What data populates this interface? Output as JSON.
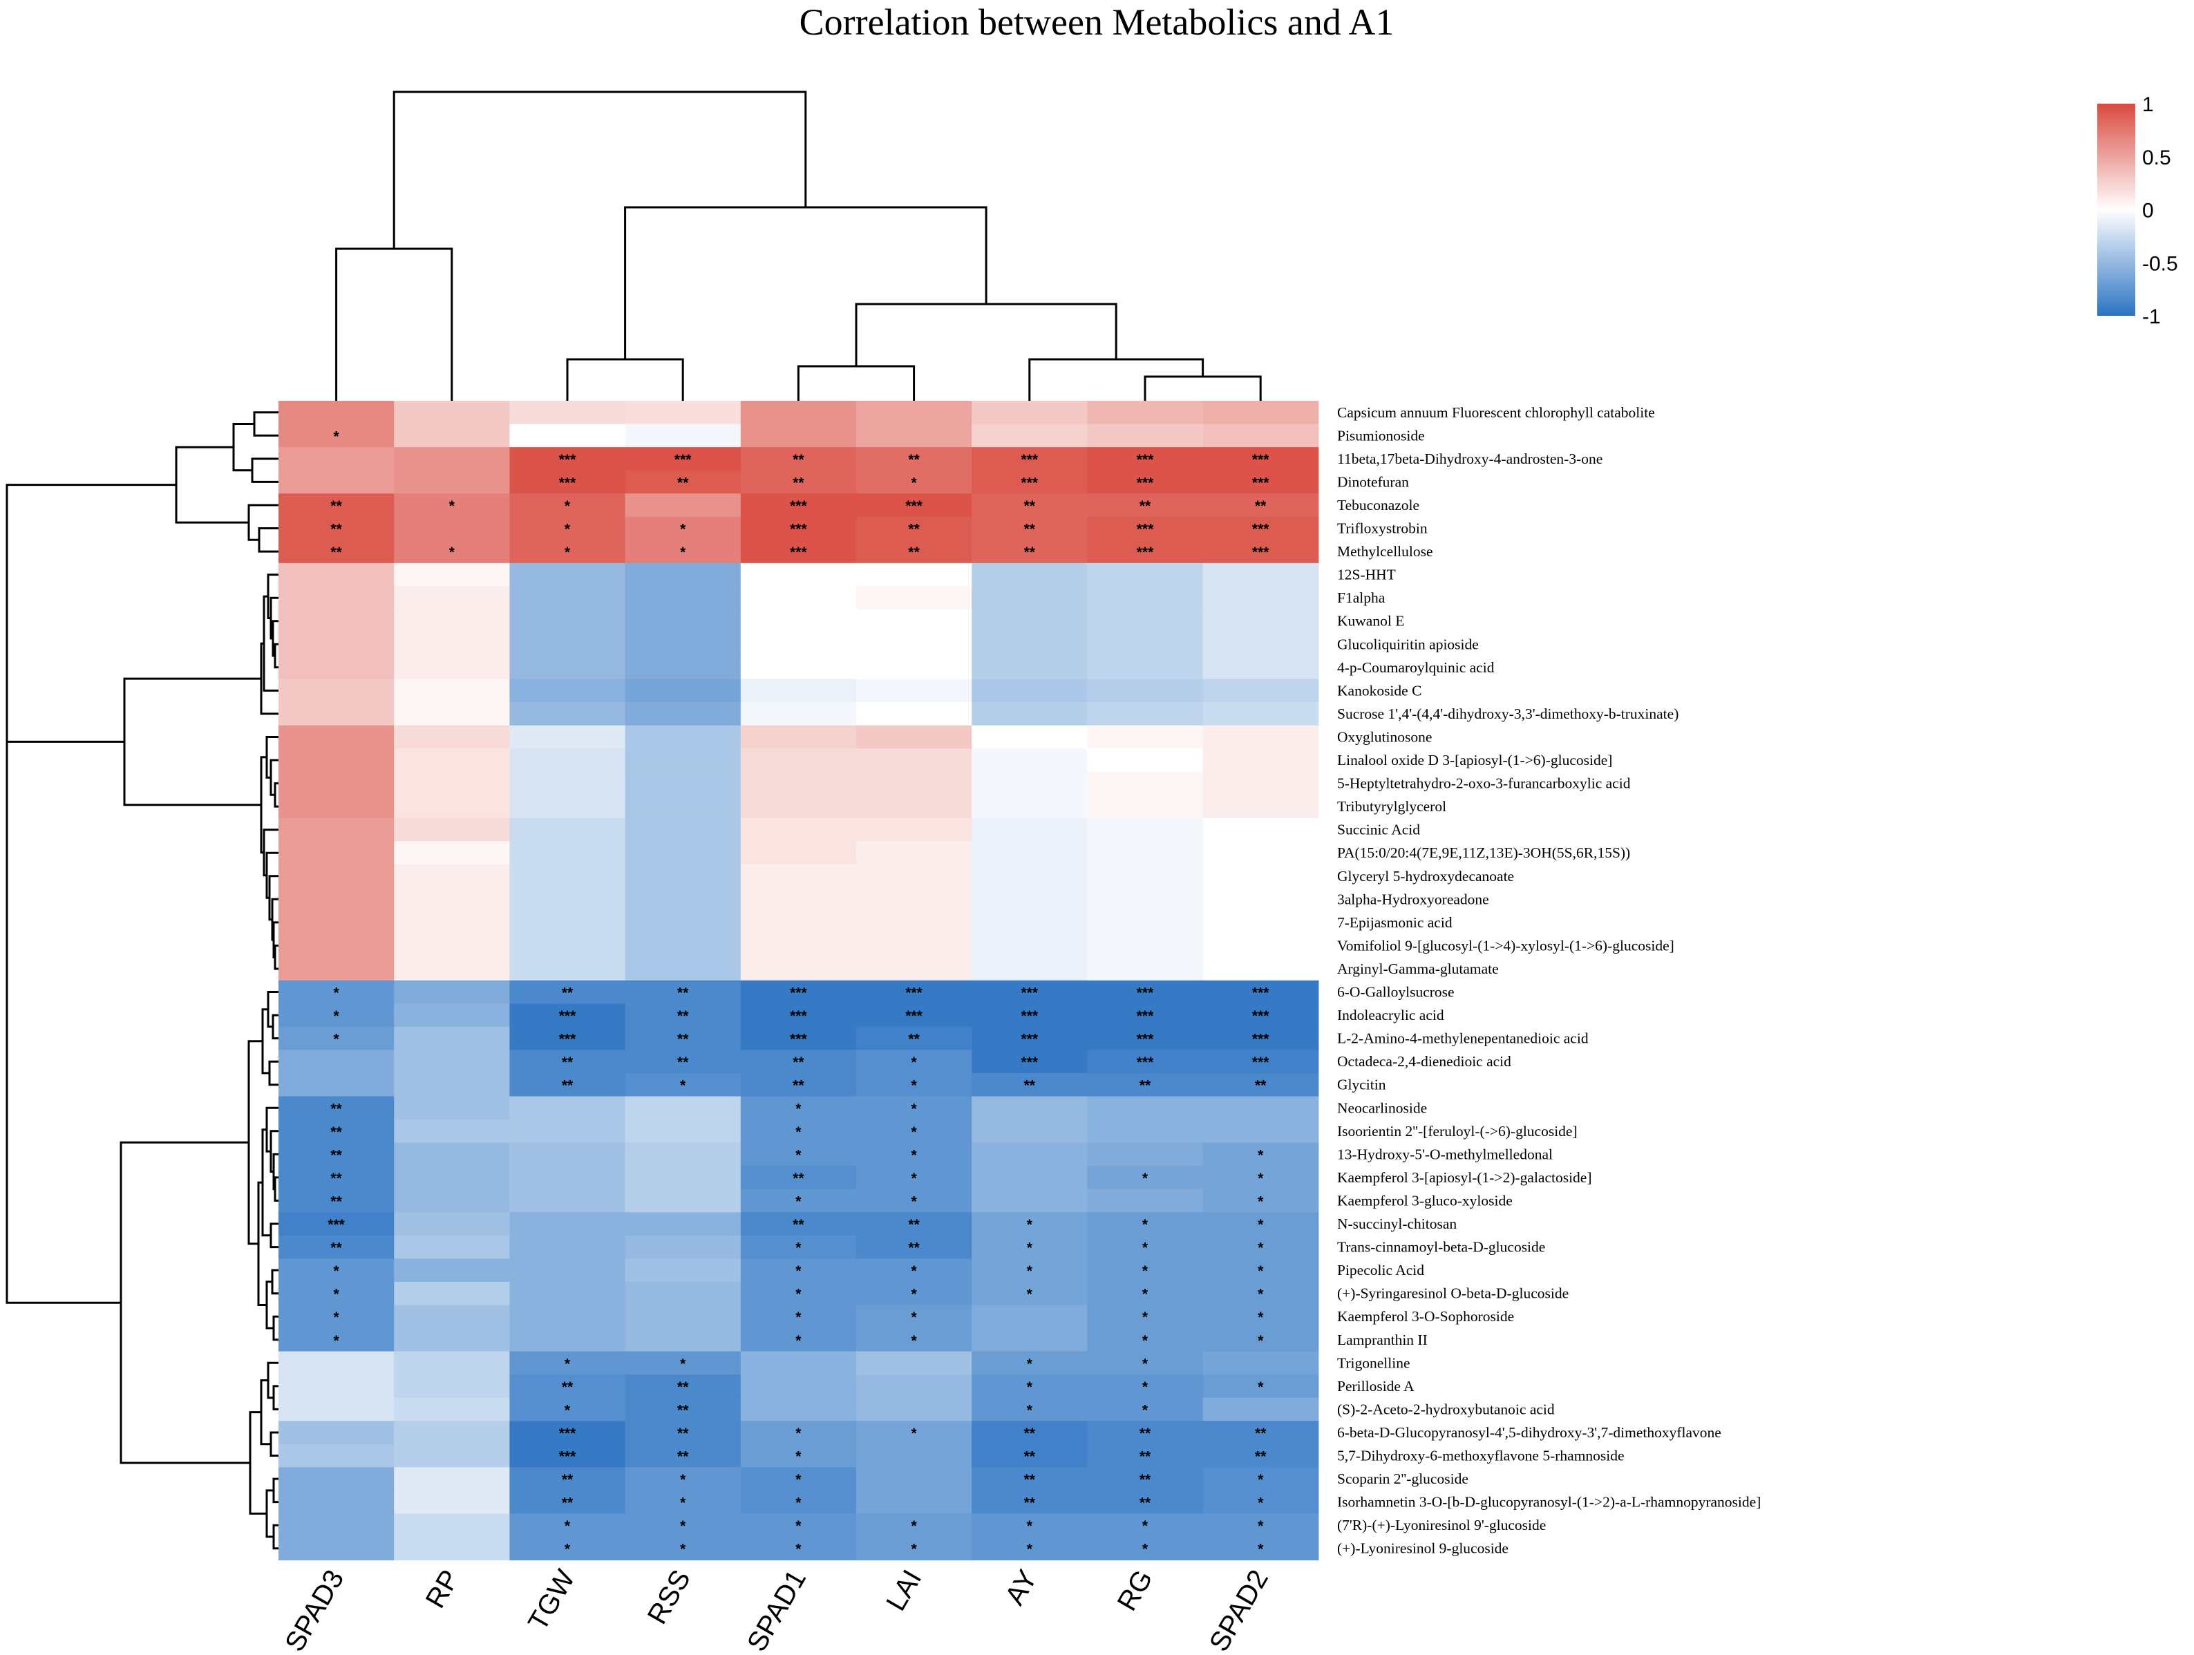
{
  "chart_data": {
    "type": "heatmap",
    "title": "Correlation between Metabolics and A1",
    "columns": [
      "SPAD3",
      "RP",
      "TGW",
      "RSS",
      "SPAD1",
      "LAI",
      "AY",
      "RG",
      "SPAD2"
    ],
    "rows": [
      "Capsicum annuum Fluorescent chlorophyll catabolite",
      "Pisumionoside",
      "11beta,17beta-Dihydroxy-4-androsten-3-one",
      "Dinotefuran",
      "Tebuconazole",
      "Trifloxystrobin",
      "Methylcellulose",
      "12S-HHT",
      "F1alpha",
      "Kuwanol E",
      "Glucoliquiritin apioside",
      "4-p-Coumaroylquinic acid",
      "Kanokoside C",
      "Sucrose 1',4'-(4,4'-dihydroxy-3,3'-dimethoxy-b-truxinate)",
      "Oxyglutinosone",
      "Linalool oxide D 3-[apiosyl-(1->6)-glucoside]",
      "5-Heptyltetrahydro-2-oxo-3-furancarboxylic acid",
      "Tributyrylglycerol",
      "Succinic Acid",
      "PA(15:0/20:4(7E,9E,11Z,13E)-3OH(5S,6R,15S))",
      "Glyceryl 5-hydroxydecanoate",
      "3alpha-Hydroxyoreadone",
      "7-Epijasmonic acid",
      "Vomifoliol 9-[glucosyl-(1->4)-xylosyl-(1->6)-glucoside]",
      "Arginyl-Gamma-glutamate",
      "6-O-Galloylsucrose",
      "Indoleacrylic acid",
      "L-2-Amino-4-methylenepentanedioic acid",
      "Octadeca-2,4-dienedioic acid",
      "Glycitin",
      "Neocarlinoside",
      "Isoorientin 2''-[feruloyl-(->6)-glucoside]",
      "13-Hydroxy-5'-O-methylmelledonal",
      "Kaempferol 3-[apiosyl-(1->2)-galactoside]",
      "Kaempferol 3-gluco-xyloside",
      "N-succinyl-chitosan",
      "Trans-cinnamoyl-beta-D-glucoside",
      "Pipecolic Acid",
      "(+)-Syringaresinol O-beta-D-glucoside",
      "Kaempferol 3-O-Sophoroside",
      "Lampranthin II",
      "Trigonelline",
      "Perilloside A",
      "(S)-2-Aceto-2-hydroxybutanoic acid",
      "6-beta-D-Glucopyranosyl-4',5-dihydroxy-3',7-dimethoxyflavone",
      "5,7-Dihydroxy-6-methoxyflavone 5-rhamnoside",
      "Scoparin 2''-glucoside",
      "Isorhamnetin 3-O-[b-D-glucopyranosyl-(1->2)-a-L-rhamnopyranoside]",
      "(7'R)-(+)-Lyoniresinol 9'-glucoside",
      "(+)-Lyoniresinol 9-glucoside"
    ],
    "values": [
      [
        0.65,
        0.3,
        0.2,
        0.18,
        0.6,
        0.5,
        0.3,
        0.4,
        0.45
      ],
      [
        0.65,
        0.3,
        0.0,
        -0.05,
        0.6,
        0.5,
        0.25,
        0.3,
        0.35
      ],
      [
        0.55,
        0.6,
        0.95,
        0.95,
        0.85,
        0.8,
        0.9,
        0.95,
        0.95
      ],
      [
        0.55,
        0.6,
        0.95,
        0.9,
        0.85,
        0.8,
        0.9,
        0.95,
        0.95
      ],
      [
        0.9,
        0.7,
        0.85,
        0.6,
        0.95,
        0.95,
        0.85,
        0.85,
        0.85
      ],
      [
        0.9,
        0.7,
        0.85,
        0.7,
        0.95,
        0.9,
        0.85,
        0.9,
        0.9
      ],
      [
        0.9,
        0.7,
        0.85,
        0.7,
        0.95,
        0.9,
        0.85,
        0.9,
        0.9
      ],
      [
        0.35,
        0.05,
        -0.5,
        -0.6,
        0.0,
        0.0,
        -0.35,
        -0.3,
        -0.2
      ],
      [
        0.35,
        0.1,
        -0.5,
        -0.6,
        0.0,
        0.05,
        -0.35,
        -0.3,
        -0.2
      ],
      [
        0.35,
        0.1,
        -0.5,
        -0.6,
        0.0,
        0.0,
        -0.35,
        -0.3,
        -0.2
      ],
      [
        0.35,
        0.1,
        -0.5,
        -0.6,
        0.0,
        0.0,
        -0.35,
        -0.3,
        -0.2
      ],
      [
        0.35,
        0.1,
        -0.5,
        -0.6,
        0.0,
        0.0,
        -0.35,
        -0.3,
        -0.2
      ],
      [
        0.3,
        0.05,
        -0.55,
        -0.65,
        -0.1,
        -0.05,
        -0.4,
        -0.35,
        -0.3
      ],
      [
        0.3,
        0.05,
        -0.5,
        -0.6,
        -0.05,
        0.0,
        -0.35,
        -0.3,
        -0.25
      ],
      [
        0.6,
        0.2,
        -0.15,
        -0.4,
        0.25,
        0.3,
        0.0,
        0.05,
        0.1
      ],
      [
        0.6,
        0.15,
        -0.2,
        -0.4,
        0.2,
        0.2,
        -0.05,
        0.0,
        0.1
      ],
      [
        0.6,
        0.15,
        -0.2,
        -0.4,
        0.2,
        0.2,
        -0.05,
        0.05,
        0.1
      ],
      [
        0.6,
        0.15,
        -0.2,
        -0.4,
        0.2,
        0.2,
        -0.05,
        0.05,
        0.1
      ],
      [
        0.55,
        0.2,
        -0.25,
        -0.4,
        0.15,
        0.15,
        -0.1,
        -0.05,
        0.0
      ],
      [
        0.55,
        0.05,
        -0.25,
        -0.4,
        0.15,
        0.1,
        -0.1,
        -0.05,
        0.0
      ],
      [
        0.55,
        0.1,
        -0.25,
        -0.4,
        0.1,
        0.1,
        -0.1,
        -0.05,
        0.0
      ],
      [
        0.55,
        0.1,
        -0.25,
        -0.4,
        0.1,
        0.1,
        -0.1,
        -0.05,
        0.0
      ],
      [
        0.55,
        0.1,
        -0.25,
        -0.4,
        0.1,
        0.1,
        -0.1,
        -0.05,
        0.0
      ],
      [
        0.55,
        0.1,
        -0.25,
        -0.4,
        0.1,
        0.1,
        -0.1,
        -0.05,
        0.0
      ],
      [
        0.55,
        0.1,
        -0.25,
        -0.4,
        0.1,
        0.1,
        -0.1,
        -0.05,
        0.0
      ],
      [
        -0.75,
        -0.6,
        -0.85,
        -0.85,
        -0.95,
        -0.95,
        -0.95,
        -0.95,
        -0.95
      ],
      [
        -0.75,
        -0.55,
        -0.95,
        -0.85,
        -0.95,
        -0.95,
        -0.95,
        -0.95,
        -0.95
      ],
      [
        -0.7,
        -0.45,
        -0.95,
        -0.85,
        -0.95,
        -0.9,
        -0.95,
        -0.95,
        -0.95
      ],
      [
        -0.6,
        -0.45,
        -0.85,
        -0.85,
        -0.85,
        -0.8,
        -0.95,
        -0.9,
        -0.9
      ],
      [
        -0.6,
        -0.45,
        -0.85,
        -0.8,
        -0.85,
        -0.8,
        -0.85,
        -0.85,
        -0.85
      ],
      [
        -0.85,
        -0.45,
        -0.4,
        -0.3,
        -0.75,
        -0.75,
        -0.5,
        -0.55,
        -0.55
      ],
      [
        -0.85,
        -0.4,
        -0.4,
        -0.3,
        -0.75,
        -0.75,
        -0.5,
        -0.55,
        -0.55
      ],
      [
        -0.85,
        -0.5,
        -0.45,
        -0.35,
        -0.75,
        -0.75,
        -0.55,
        -0.6,
        -0.65
      ],
      [
        -0.85,
        -0.5,
        -0.45,
        -0.35,
        -0.8,
        -0.75,
        -0.55,
        -0.65,
        -0.65
      ],
      [
        -0.85,
        -0.5,
        -0.45,
        -0.35,
        -0.75,
        -0.75,
        -0.55,
        -0.6,
        -0.65
      ],
      [
        -0.9,
        -0.45,
        -0.55,
        -0.55,
        -0.85,
        -0.85,
        -0.65,
        -0.7,
        -0.7
      ],
      [
        -0.85,
        -0.4,
        -0.55,
        -0.5,
        -0.8,
        -0.85,
        -0.65,
        -0.7,
        -0.7
      ],
      [
        -0.75,
        -0.55,
        -0.55,
        -0.45,
        -0.75,
        -0.75,
        -0.65,
        -0.7,
        -0.7
      ],
      [
        -0.75,
        -0.35,
        -0.55,
        -0.5,
        -0.75,
        -0.75,
        -0.65,
        -0.7,
        -0.7
      ],
      [
        -0.75,
        -0.45,
        -0.55,
        -0.5,
        -0.75,
        -0.7,
        -0.6,
        -0.7,
        -0.7
      ],
      [
        -0.75,
        -0.45,
        -0.55,
        -0.5,
        -0.75,
        -0.7,
        -0.6,
        -0.7,
        -0.7
      ],
      [
        -0.2,
        -0.3,
        -0.75,
        -0.75,
        -0.55,
        -0.45,
        -0.7,
        -0.7,
        -0.65
      ],
      [
        -0.2,
        -0.3,
        -0.8,
        -0.85,
        -0.55,
        -0.5,
        -0.75,
        -0.75,
        -0.7
      ],
      [
        -0.2,
        -0.25,
        -0.8,
        -0.85,
        -0.55,
        -0.5,
        -0.75,
        -0.75,
        -0.6
      ],
      [
        -0.45,
        -0.35,
        -0.95,
        -0.85,
        -0.7,
        -0.65,
        -0.9,
        -0.85,
        -0.85
      ],
      [
        -0.4,
        -0.35,
        -0.95,
        -0.85,
        -0.7,
        -0.65,
        -0.9,
        -0.85,
        -0.85
      ],
      [
        -0.6,
        -0.15,
        -0.85,
        -0.75,
        -0.8,
        -0.65,
        -0.85,
        -0.85,
        -0.8
      ],
      [
        -0.6,
        -0.15,
        -0.85,
        -0.75,
        -0.8,
        -0.65,
        -0.85,
        -0.85,
        -0.8
      ],
      [
        -0.6,
        -0.25,
        -0.75,
        -0.75,
        -0.75,
        -0.7,
        -0.75,
        -0.75,
        -0.75
      ],
      [
        -0.6,
        -0.25,
        -0.75,
        -0.75,
        -0.75,
        -0.7,
        -0.75,
        -0.75,
        -0.75
      ]
    ],
    "significance": [
      [
        "",
        "",
        "",
        "",
        "",
        "",
        "",
        "",
        ""
      ],
      [
        "*",
        "",
        "",
        "",
        "",
        "",
        "",
        "",
        ""
      ],
      [
        "",
        "",
        "***",
        "***",
        "**",
        "**",
        "***",
        "***",
        "***"
      ],
      [
        "",
        "",
        "***",
        "**",
        "**",
        "*",
        "***",
        "***",
        "***"
      ],
      [
        "**",
        "*",
        "*",
        "",
        "***",
        "***",
        "**",
        "**",
        "**"
      ],
      [
        "**",
        "",
        "*",
        "*",
        "***",
        "**",
        "**",
        "***",
        "***"
      ],
      [
        "**",
        "*",
        "*",
        "*",
        "***",
        "**",
        "**",
        "***",
        "***"
      ],
      [
        "",
        "",
        "",
        "",
        "",
        "",
        "",
        "",
        ""
      ],
      [
        "",
        "",
        "",
        "",
        "",
        "",
        "",
        "",
        ""
      ],
      [
        "",
        "",
        "",
        "",
        "",
        "",
        "",
        "",
        ""
      ],
      [
        "",
        "",
        "",
        "",
        "",
        "",
        "",
        "",
        ""
      ],
      [
        "",
        "",
        "",
        "",
        "",
        "",
        "",
        "",
        ""
      ],
      [
        "",
        "",
        "",
        "",
        "",
        "",
        "",
        "",
        ""
      ],
      [
        "",
        "",
        "",
        "",
        "",
        "",
        "",
        "",
        ""
      ],
      [
        "",
        "",
        "",
        "",
        "",
        "",
        "",
        "",
        ""
      ],
      [
        "",
        "",
        "",
        "",
        "",
        "",
        "",
        "",
        ""
      ],
      [
        "",
        "",
        "",
        "",
        "",
        "",
        "",
        "",
        ""
      ],
      [
        "",
        "",
        "",
        "",
        "",
        "",
        "",
        "",
        ""
      ],
      [
        "",
        "",
        "",
        "",
        "",
        "",
        "",
        "",
        ""
      ],
      [
        "",
        "",
        "",
        "",
        "",
        "",
        "",
        "",
        ""
      ],
      [
        "",
        "",
        "",
        "",
        "",
        "",
        "",
        "",
        ""
      ],
      [
        "",
        "",
        "",
        "",
        "",
        "",
        "",
        "",
        ""
      ],
      [
        "",
        "",
        "",
        "",
        "",
        "",
        "",
        "",
        ""
      ],
      [
        "",
        "",
        "",
        "",
        "",
        "",
        "",
        "",
        ""
      ],
      [
        "",
        "",
        "",
        "",
        "",
        "",
        "",
        "",
        ""
      ],
      [
        "*",
        "",
        "**",
        "**",
        "***",
        "***",
        "***",
        "***",
        "***"
      ],
      [
        "*",
        "",
        "***",
        "**",
        "***",
        "***",
        "***",
        "***",
        "***"
      ],
      [
        "*",
        "",
        "***",
        "**",
        "***",
        "**",
        "***",
        "***",
        "***"
      ],
      [
        "",
        "",
        "**",
        "**",
        "**",
        "*",
        "***",
        "***",
        "***"
      ],
      [
        "",
        "",
        "**",
        "*",
        "**",
        "*",
        "**",
        "**",
        "**"
      ],
      [
        "**",
        "",
        "",
        "",
        "*",
        "*",
        "",
        "",
        ""
      ],
      [
        "**",
        "",
        "",
        "",
        "*",
        "*",
        "",
        "",
        ""
      ],
      [
        "**",
        "",
        "",
        "",
        "*",
        "*",
        "",
        "",
        "*"
      ],
      [
        "**",
        "",
        "",
        "",
        "**",
        "*",
        "",
        "*",
        "*"
      ],
      [
        "**",
        "",
        "",
        "",
        "*",
        "*",
        "",
        "",
        "*"
      ],
      [
        "***",
        "",
        "",
        "",
        "**",
        "**",
        "*",
        "*",
        "*"
      ],
      [
        "**",
        "",
        "",
        "",
        "*",
        "**",
        "*",
        "*",
        "*"
      ],
      [
        "*",
        "",
        "",
        "",
        "*",
        "*",
        "*",
        "*",
        "*"
      ],
      [
        "*",
        "",
        "",
        "",
        "*",
        "*",
        "*",
        "*",
        "*"
      ],
      [
        "*",
        "",
        "",
        "",
        "*",
        "*",
        "",
        "*",
        "*"
      ],
      [
        "*",
        "",
        "",
        "",
        "*",
        "*",
        "",
        "*",
        "*"
      ],
      [
        "",
        "",
        "*",
        "*",
        "",
        "",
        "*",
        "*",
        ""
      ],
      [
        "",
        "",
        "**",
        "**",
        "",
        "",
        "*",
        "*",
        "*"
      ],
      [
        "",
        "",
        "*",
        "**",
        "",
        "",
        "*",
        "*",
        ""
      ],
      [
        "",
        "",
        "***",
        "**",
        "*",
        "*",
        "**",
        "**",
        "**"
      ],
      [
        "",
        "",
        "***",
        "**",
        "*",
        "",
        "**",
        "**",
        "**"
      ],
      [
        "",
        "",
        "**",
        "*",
        "*",
        "",
        "**",
        "**",
        "*"
      ],
      [
        "",
        "",
        "**",
        "*",
        "*",
        "",
        "**",
        "**",
        "*"
      ],
      [
        "",
        "",
        "*",
        "*",
        "*",
        "*",
        "*",
        "*",
        "*"
      ],
      [
        "",
        "",
        "*",
        "*",
        "*",
        "*",
        "*",
        "*",
        "*"
      ]
    ],
    "colorscale": {
      "min": -1,
      "max": 1,
      "low_color": "#2b73c3",
      "mid_color": "#ffffff",
      "high_color": "#d94a3f",
      "ticks": [
        "1",
        "0.5",
        "0",
        "-0.5",
        "-1"
      ]
    }
  }
}
